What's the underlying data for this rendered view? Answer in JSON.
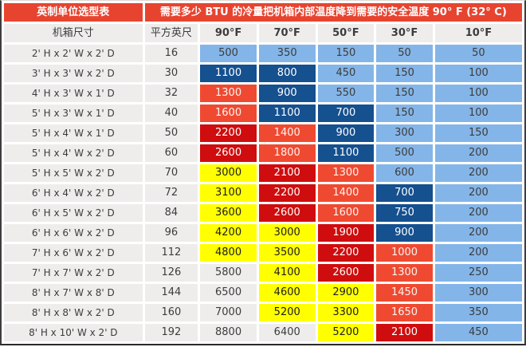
{
  "page": {
    "background": "#FAF7F2"
  },
  "chart_data": {
    "type": "table",
    "corner_title": "英制单位选型表",
    "title": "需要多少 BTU 的冷量把机箱内部温度降到需要的安全温度 90° F (32° C)",
    "columns": [
      "机箱尺寸",
      "平方英尺",
      "90°F",
      "70°F",
      "50°F",
      "30°F",
      "10°F"
    ],
    "rows": [
      {
        "dimensions": "2' H x 2' W x 2' D",
        "sqft": "16",
        "btu": [
          "500",
          "350",
          "150",
          "50",
          "50"
        ],
        "bands": [
          "lightblue",
          "lightblue",
          "lightblue",
          "lightblue",
          "lightblue"
        ]
      },
      {
        "dimensions": "3' H x 3' W x 2' D",
        "sqft": "30",
        "btu": [
          "1100",
          "800",
          "450",
          "150",
          "100"
        ],
        "bands": [
          "darkblue",
          "darkblue",
          "lightblue",
          "lightblue",
          "lightblue"
        ]
      },
      {
        "dimensions": "4' H x 3' W x 1' D",
        "sqft": "32",
        "btu": [
          "1300",
          "900",
          "550",
          "150",
          "100"
        ],
        "bands": [
          "orange",
          "darkblue",
          "lightblue",
          "lightblue",
          "lightblue"
        ]
      },
      {
        "dimensions": "5' H x 3' W x 1' D",
        "sqft": "40",
        "btu": [
          "1600",
          "1100",
          "700",
          "150",
          "100"
        ],
        "bands": [
          "orange",
          "darkblue",
          "darkblue",
          "lightblue",
          "lightblue"
        ]
      },
      {
        "dimensions": "5' H x 4' W x 1' D",
        "sqft": "50",
        "btu": [
          "2200",
          "1400",
          "900",
          "300",
          "150"
        ],
        "bands": [
          "red",
          "orange",
          "darkblue",
          "lightblue",
          "lightblue"
        ]
      },
      {
        "dimensions": "5' H x 4' W x 2' D",
        "sqft": "60",
        "btu": [
          "2600",
          "1800",
          "1100",
          "500",
          "200"
        ],
        "bands": [
          "red",
          "orange",
          "darkblue",
          "lightblue",
          "lightblue"
        ]
      },
      {
        "dimensions": "5' H x 5' W x 2' D",
        "sqft": "70",
        "btu": [
          "3000",
          "2100",
          "1300",
          "600",
          "200"
        ],
        "bands": [
          "yellow",
          "red",
          "orange",
          "lightblue",
          "lightblue"
        ]
      },
      {
        "dimensions": "6' H x 4' W x 2' D",
        "sqft": "72",
        "btu": [
          "3100",
          "2200",
          "1400",
          "700",
          "200"
        ],
        "bands": [
          "yellow",
          "red",
          "orange",
          "darkblue",
          "lightblue"
        ]
      },
      {
        "dimensions": "6' H x 5' W x 2' D",
        "sqft": "84",
        "btu": [
          "3600",
          "2600",
          "1600",
          "750",
          "200"
        ],
        "bands": [
          "yellow",
          "red",
          "orange",
          "darkblue",
          "lightblue"
        ]
      },
      {
        "dimensions": "6' H x 6' W x 2' D",
        "sqft": "96",
        "btu": [
          "4200",
          "3000",
          "1900",
          "900",
          "200"
        ],
        "bands": [
          "yellow",
          "yellow",
          "red",
          "darkblue",
          "lightblue"
        ]
      },
      {
        "dimensions": "7' H x 6' W x 2' D",
        "sqft": "112",
        "btu": [
          "4800",
          "3500",
          "2200",
          "1000",
          "200"
        ],
        "bands": [
          "yellow",
          "yellow",
          "red",
          "orange",
          "lightblue"
        ]
      },
      {
        "dimensions": "7' H x 7' W x 2' D",
        "sqft": "126",
        "btu": [
          "5800",
          "4100",
          "2600",
          "1300",
          "250"
        ],
        "bands": [
          "none",
          "yellow",
          "red",
          "orange",
          "lightblue"
        ]
      },
      {
        "dimensions": "8' H x 7' W x 8' D",
        "sqft": "144",
        "btu": [
          "6500",
          "4600",
          "2900",
          "1450",
          "300"
        ],
        "bands": [
          "none",
          "yellow",
          "yellow",
          "orange",
          "lightblue"
        ]
      },
      {
        "dimensions": "8' H x 8' W x 2' D",
        "sqft": "160",
        "btu": [
          "7000",
          "5200",
          "3300",
          "1650",
          "350"
        ],
        "bands": [
          "none",
          "yellow",
          "yellow",
          "orange",
          "lightblue"
        ]
      },
      {
        "dimensions": "8' H x 10' W x 2' D",
        "sqft": "192",
        "btu": [
          "8800",
          "6400",
          "5200",
          "2100",
          "450"
        ],
        "bands": [
          "none",
          "none",
          "yellow",
          "red",
          "lightblue"
        ]
      }
    ],
    "band_colors": {
      "lightblue": "#84B5E8",
      "darkblue": "#15508F",
      "orange": "#EF4A31",
      "red": "#CF0D0E",
      "yellow": "#FFFF00",
      "none": ""
    },
    "header_red": "#E74430",
    "row_background": "#EEEDEC"
  }
}
